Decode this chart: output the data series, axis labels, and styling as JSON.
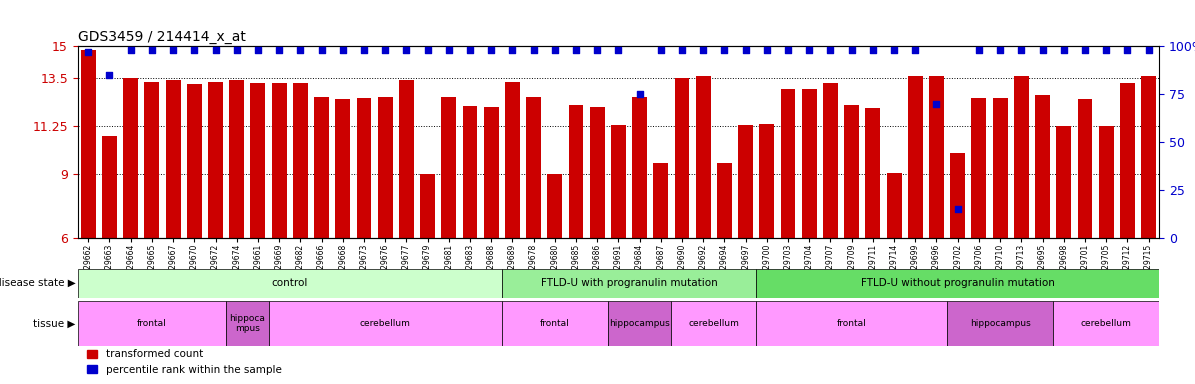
{
  "title": "GDS3459 / 214414_x_at",
  "sample_labels": [
    "GSM329662",
    "GSM329663",
    "GSM329664",
    "GSM329665",
    "GSM329667",
    "GSM329670",
    "GSM329672",
    "GSM329674",
    "GSM329661",
    "GSM329669",
    "GSM329682",
    "GSM329666",
    "GSM329668",
    "GSM329673",
    "GSM329676",
    "GSM329677",
    "GSM329679",
    "GSM329681",
    "GSM329683",
    "GSM329688",
    "GSM329689",
    "GSM329678",
    "GSM329680",
    "GSM329685",
    "GSM329686",
    "GSM329691",
    "GSM329684",
    "GSM329687",
    "GSM329690",
    "GSM329692",
    "GSM329694",
    "GSM329697",
    "GSM329700",
    "GSM329703",
    "GSM329704",
    "GSM329707",
    "GSM329709",
    "GSM329711",
    "GSM329714",
    "GSM329699",
    "GSM329696",
    "GSM329702",
    "GSM329706",
    "GSM329710",
    "GSM329713",
    "GSM329695",
    "GSM329698",
    "GSM329701",
    "GSM329705",
    "GSM329712",
    "GSM329715"
  ],
  "bar_values": [
    14.8,
    10.8,
    13.5,
    13.3,
    13.4,
    13.2,
    13.3,
    13.4,
    13.25,
    13.25,
    13.25,
    12.6,
    12.5,
    12.55,
    12.6,
    13.4,
    9.0,
    12.6,
    12.2,
    12.15,
    13.3,
    12.6,
    9.0,
    12.25,
    12.15,
    11.3,
    12.6,
    9.5,
    13.5,
    13.6,
    9.5,
    11.3,
    11.35,
    13.0,
    13.0,
    13.25,
    12.25,
    12.1,
    9.05,
    13.6,
    13.6,
    10.0,
    12.55,
    12.55,
    13.6,
    12.7,
    11.25,
    12.5,
    11.25,
    13.25,
    13.6
  ],
  "percentile_values": [
    97,
    85,
    98,
    98,
    98,
    98,
    98,
    98,
    98,
    98,
    98,
    98,
    98,
    98,
    98,
    98,
    98,
    98,
    98,
    98,
    98,
    98,
    98,
    98,
    98,
    98,
    75,
    98,
    98,
    98,
    98,
    98,
    98,
    98,
    98,
    98,
    98,
    98,
    98,
    98,
    70,
    15,
    98,
    98,
    98,
    98,
    98,
    98,
    98,
    98,
    98
  ],
  "ylim_left": [
    6,
    15
  ],
  "ylim_right": [
    0,
    100
  ],
  "yticks_left": [
    6,
    9,
    11.25,
    13.5,
    15
  ],
  "ytick_labels_left": [
    "6",
    "9",
    "11.25",
    "13.5",
    "15"
  ],
  "yticks_right": [
    0,
    25,
    50,
    75,
    100
  ],
  "ytick_labels_right": [
    "0",
    "25",
    "50",
    "75",
    "100%"
  ],
  "bar_color": "#cc0000",
  "dot_color": "#0000cc",
  "disease_state_groups": [
    {
      "label": "control",
      "start": 0,
      "end": 20,
      "color": "#ccffcc"
    },
    {
      "label": "FTLD-U with progranulin mutation",
      "start": 20,
      "end": 32,
      "color": "#99ee99"
    },
    {
      "label": "FTLD-U without progranulin mutation",
      "start": 32,
      "end": 51,
      "color": "#66dd66"
    }
  ],
  "tissue_groups": [
    {
      "label": "frontal",
      "start": 0,
      "end": 7,
      "color": "#ff99ff"
    },
    {
      "label": "hippoca\nmpus",
      "start": 7,
      "end": 9,
      "color": "#cc66cc"
    },
    {
      "label": "cerebellum",
      "start": 9,
      "end": 20,
      "color": "#ff99ff"
    },
    {
      "label": "frontal",
      "start": 20,
      "end": 25,
      "color": "#ff99ff"
    },
    {
      "label": "hippocampus",
      "start": 25,
      "end": 28,
      "color": "#cc66cc"
    },
    {
      "label": "cerebellum",
      "start": 28,
      "end": 32,
      "color": "#ff99ff"
    },
    {
      "label": "frontal",
      "start": 32,
      "end": 41,
      "color": "#ff99ff"
    },
    {
      "label": "hippocampus",
      "start": 41,
      "end": 46,
      "color": "#cc66cc"
    },
    {
      "label": "cerebellum",
      "start": 46,
      "end": 51,
      "color": "#ff99ff"
    }
  ],
  "background_color": "#ffffff",
  "legend_items": [
    {
      "label": "transformed count",
      "color": "#cc0000"
    },
    {
      "label": "percentile rank within the sample",
      "color": "#0000cc"
    }
  ]
}
